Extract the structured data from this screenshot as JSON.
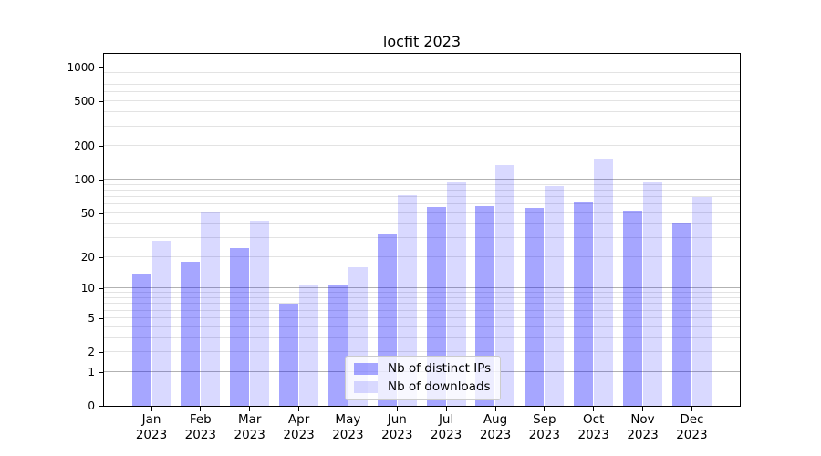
{
  "chart_data": {
    "type": "bar",
    "title": "locfit 2023",
    "categories": [
      "Jan",
      "Feb",
      "Mar",
      "Apr",
      "May",
      "Jun",
      "Jul",
      "Aug",
      "Sep",
      "Oct",
      "Nov",
      "Dec"
    ],
    "x_tick_year": "2023",
    "series": [
      {
        "name": "Nb of distinct IPs",
        "color": "rgba(0,0,255,0.35)",
        "values": [
          14,
          18,
          24,
          7,
          11,
          32,
          57,
          58,
          56,
          64,
          53,
          41
        ]
      },
      {
        "name": "Nb of downloads",
        "color": "rgba(0,0,255,0.15)",
        "values": [
          28,
          52,
          43,
          11,
          16,
          73,
          95,
          135,
          88,
          155,
          95,
          70
        ]
      }
    ],
    "y_axis": {
      "scale": "log1p",
      "tick_labels": [
        "0",
        "1",
        "2",
        "5",
        "10",
        "20",
        "50",
        "100",
        "200",
        "500",
        "1000"
      ],
      "tick_values": [
        0,
        1,
        2,
        5,
        10,
        20,
        50,
        100,
        200,
        500,
        1000
      ],
      "major_gridlines": [
        1,
        10,
        100,
        1000
      ],
      "minor_gridlines": [
        2,
        3,
        4,
        5,
        6,
        7,
        8,
        9,
        20,
        30,
        40,
        50,
        60,
        70,
        80,
        90,
        200,
        300,
        400,
        500,
        600,
        700,
        800,
        900
      ],
      "ylim": [
        0,
        1320
      ]
    },
    "xlabel": "",
    "ylabel": "",
    "legend_position": "lower center",
    "colors": {
      "major_grid": "#b2b2b2",
      "minor_grid": "#e3e3e3",
      "axis": "#000000",
      "background": "#ffffff"
    }
  }
}
